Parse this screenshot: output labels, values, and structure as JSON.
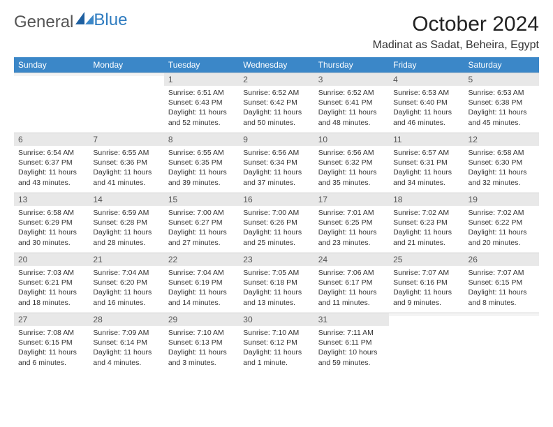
{
  "logo": {
    "text1": "General",
    "text2": "Blue"
  },
  "title": "October 2024",
  "location": "Madinat as Sadat, Beheira, Egypt",
  "colors": {
    "header_bg": "#3b87c8",
    "header_text": "#ffffff",
    "daynum_bg": "#e8e8e8",
    "logo_gray": "#555555",
    "logo_blue": "#2f7cc0"
  },
  "weekdays": [
    "Sunday",
    "Monday",
    "Tuesday",
    "Wednesday",
    "Thursday",
    "Friday",
    "Saturday"
  ],
  "weeks": [
    [
      {
        "n": "",
        "sr": "",
        "ss": "",
        "dl": ""
      },
      {
        "n": "",
        "sr": "",
        "ss": "",
        "dl": ""
      },
      {
        "n": "1",
        "sr": "Sunrise: 6:51 AM",
        "ss": "Sunset: 6:43 PM",
        "dl": "Daylight: 11 hours and 52 minutes."
      },
      {
        "n": "2",
        "sr": "Sunrise: 6:52 AM",
        "ss": "Sunset: 6:42 PM",
        "dl": "Daylight: 11 hours and 50 minutes."
      },
      {
        "n": "3",
        "sr": "Sunrise: 6:52 AM",
        "ss": "Sunset: 6:41 PM",
        "dl": "Daylight: 11 hours and 48 minutes."
      },
      {
        "n": "4",
        "sr": "Sunrise: 6:53 AM",
        "ss": "Sunset: 6:40 PM",
        "dl": "Daylight: 11 hours and 46 minutes."
      },
      {
        "n": "5",
        "sr": "Sunrise: 6:53 AM",
        "ss": "Sunset: 6:38 PM",
        "dl": "Daylight: 11 hours and 45 minutes."
      }
    ],
    [
      {
        "n": "6",
        "sr": "Sunrise: 6:54 AM",
        "ss": "Sunset: 6:37 PM",
        "dl": "Daylight: 11 hours and 43 minutes."
      },
      {
        "n": "7",
        "sr": "Sunrise: 6:55 AM",
        "ss": "Sunset: 6:36 PM",
        "dl": "Daylight: 11 hours and 41 minutes."
      },
      {
        "n": "8",
        "sr": "Sunrise: 6:55 AM",
        "ss": "Sunset: 6:35 PM",
        "dl": "Daylight: 11 hours and 39 minutes."
      },
      {
        "n": "9",
        "sr": "Sunrise: 6:56 AM",
        "ss": "Sunset: 6:34 PM",
        "dl": "Daylight: 11 hours and 37 minutes."
      },
      {
        "n": "10",
        "sr": "Sunrise: 6:56 AM",
        "ss": "Sunset: 6:32 PM",
        "dl": "Daylight: 11 hours and 35 minutes."
      },
      {
        "n": "11",
        "sr": "Sunrise: 6:57 AM",
        "ss": "Sunset: 6:31 PM",
        "dl": "Daylight: 11 hours and 34 minutes."
      },
      {
        "n": "12",
        "sr": "Sunrise: 6:58 AM",
        "ss": "Sunset: 6:30 PM",
        "dl": "Daylight: 11 hours and 32 minutes."
      }
    ],
    [
      {
        "n": "13",
        "sr": "Sunrise: 6:58 AM",
        "ss": "Sunset: 6:29 PM",
        "dl": "Daylight: 11 hours and 30 minutes."
      },
      {
        "n": "14",
        "sr": "Sunrise: 6:59 AM",
        "ss": "Sunset: 6:28 PM",
        "dl": "Daylight: 11 hours and 28 minutes."
      },
      {
        "n": "15",
        "sr": "Sunrise: 7:00 AM",
        "ss": "Sunset: 6:27 PM",
        "dl": "Daylight: 11 hours and 27 minutes."
      },
      {
        "n": "16",
        "sr": "Sunrise: 7:00 AM",
        "ss": "Sunset: 6:26 PM",
        "dl": "Daylight: 11 hours and 25 minutes."
      },
      {
        "n": "17",
        "sr": "Sunrise: 7:01 AM",
        "ss": "Sunset: 6:25 PM",
        "dl": "Daylight: 11 hours and 23 minutes."
      },
      {
        "n": "18",
        "sr": "Sunrise: 7:02 AM",
        "ss": "Sunset: 6:23 PM",
        "dl": "Daylight: 11 hours and 21 minutes."
      },
      {
        "n": "19",
        "sr": "Sunrise: 7:02 AM",
        "ss": "Sunset: 6:22 PM",
        "dl": "Daylight: 11 hours and 20 minutes."
      }
    ],
    [
      {
        "n": "20",
        "sr": "Sunrise: 7:03 AM",
        "ss": "Sunset: 6:21 PM",
        "dl": "Daylight: 11 hours and 18 minutes."
      },
      {
        "n": "21",
        "sr": "Sunrise: 7:04 AM",
        "ss": "Sunset: 6:20 PM",
        "dl": "Daylight: 11 hours and 16 minutes."
      },
      {
        "n": "22",
        "sr": "Sunrise: 7:04 AM",
        "ss": "Sunset: 6:19 PM",
        "dl": "Daylight: 11 hours and 14 minutes."
      },
      {
        "n": "23",
        "sr": "Sunrise: 7:05 AM",
        "ss": "Sunset: 6:18 PM",
        "dl": "Daylight: 11 hours and 13 minutes."
      },
      {
        "n": "24",
        "sr": "Sunrise: 7:06 AM",
        "ss": "Sunset: 6:17 PM",
        "dl": "Daylight: 11 hours and 11 minutes."
      },
      {
        "n": "25",
        "sr": "Sunrise: 7:07 AM",
        "ss": "Sunset: 6:16 PM",
        "dl": "Daylight: 11 hours and 9 minutes."
      },
      {
        "n": "26",
        "sr": "Sunrise: 7:07 AM",
        "ss": "Sunset: 6:15 PM",
        "dl": "Daylight: 11 hours and 8 minutes."
      }
    ],
    [
      {
        "n": "27",
        "sr": "Sunrise: 7:08 AM",
        "ss": "Sunset: 6:15 PM",
        "dl": "Daylight: 11 hours and 6 minutes."
      },
      {
        "n": "28",
        "sr": "Sunrise: 7:09 AM",
        "ss": "Sunset: 6:14 PM",
        "dl": "Daylight: 11 hours and 4 minutes."
      },
      {
        "n": "29",
        "sr": "Sunrise: 7:10 AM",
        "ss": "Sunset: 6:13 PM",
        "dl": "Daylight: 11 hours and 3 minutes."
      },
      {
        "n": "30",
        "sr": "Sunrise: 7:10 AM",
        "ss": "Sunset: 6:12 PM",
        "dl": "Daylight: 11 hours and 1 minute."
      },
      {
        "n": "31",
        "sr": "Sunrise: 7:11 AM",
        "ss": "Sunset: 6:11 PM",
        "dl": "Daylight: 10 hours and 59 minutes."
      },
      {
        "n": "",
        "sr": "",
        "ss": "",
        "dl": ""
      },
      {
        "n": "",
        "sr": "",
        "ss": "",
        "dl": ""
      }
    ]
  ]
}
